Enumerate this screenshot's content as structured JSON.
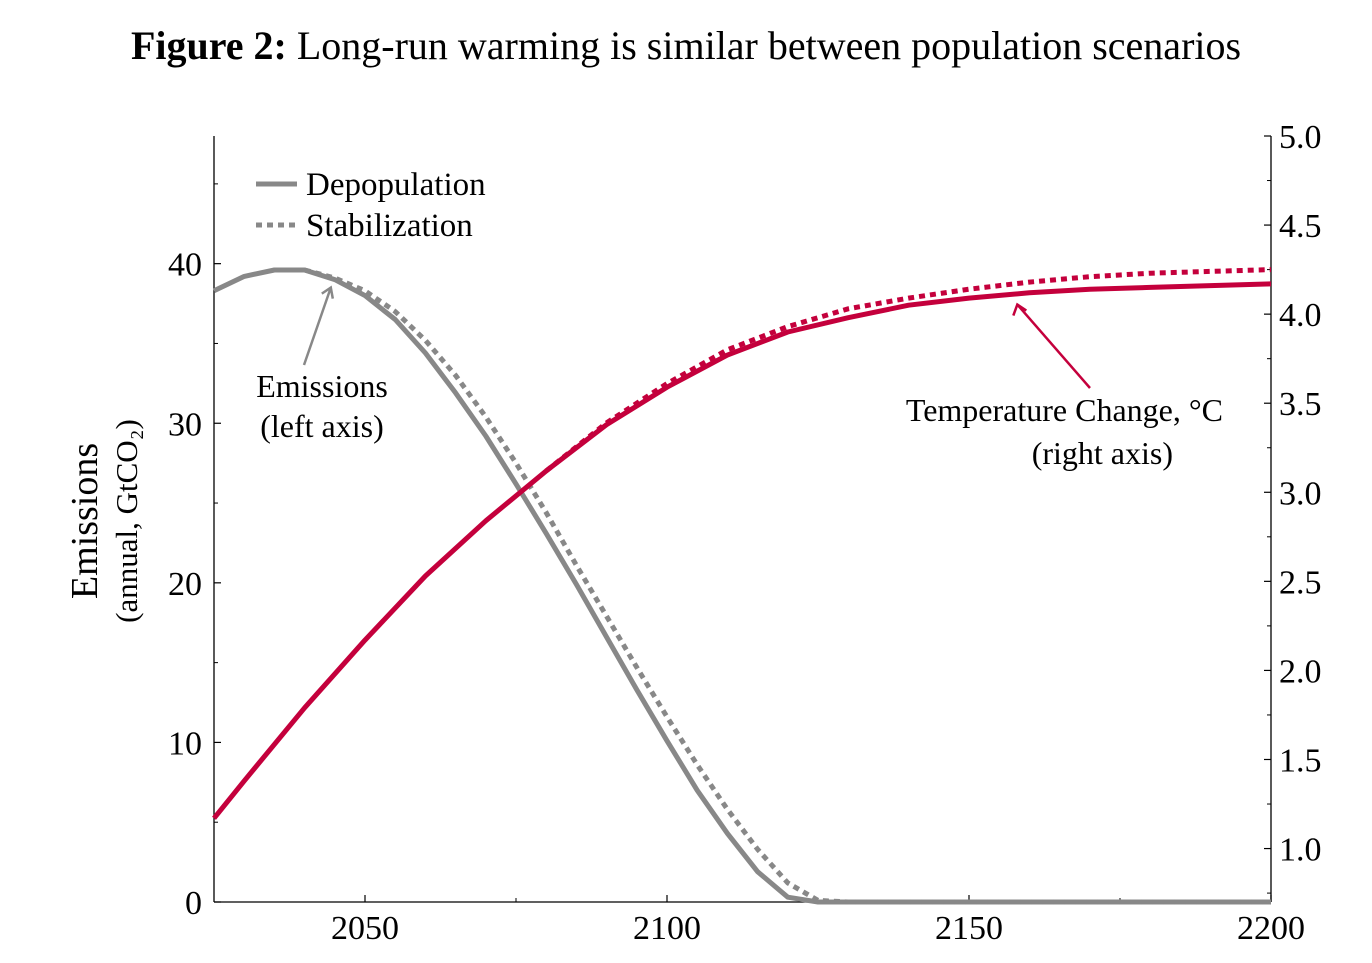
{
  "figure": {
    "label": "Figure 2:",
    "title": "Long-run warming is similar between population scenarios"
  },
  "chart_data": {
    "type": "line",
    "x": {
      "min": 2025,
      "max": 2200,
      "ticks": [
        2050,
        2100,
        2150,
        2200
      ],
      "tick_labels": [
        "2050",
        "2100",
        "2150",
        "2200"
      ],
      "minor_ticks": [
        2075,
        2125,
        2175
      ]
    },
    "y_left": {
      "min": 0,
      "max": 48,
      "ticks": [
        0,
        10,
        20,
        30,
        40
      ],
      "tick_labels": [
        "0",
        "10",
        "20",
        "30",
        "40"
      ],
      "minor_ticks": [
        5,
        15,
        25,
        35,
        45
      ],
      "label": "Emissions",
      "sublabel": "(annual, GtCO₂)"
    },
    "y_right": {
      "min": 0.7,
      "max": 5.0,
      "ticks": [
        1.0,
        1.5,
        2.0,
        2.5,
        3.0,
        3.5,
        4.0,
        4.5,
        5.0
      ],
      "tick_labels": [
        "1.0",
        "1.5",
        "2.0",
        "2.5",
        "3.0",
        "3.5",
        "4.0",
        "4.5",
        "5.0"
      ],
      "minor_ticks": [
        0.75,
        1.25,
        1.75,
        2.25,
        2.75,
        3.25,
        3.75,
        4.25,
        4.75
      ]
    },
    "legend": {
      "position": "top-left",
      "entries": [
        {
          "name": "Depopulation",
          "style": "solid"
        },
        {
          "name": "Stabilization",
          "style": "dotted"
        }
      ]
    },
    "colors": {
      "emissions": "#888888",
      "temperature": "#c4003c"
    },
    "series": [
      {
        "name": "Emissions, Depopulation",
        "axis": "left",
        "style": "solid",
        "x": [
          2025,
          2030,
          2035,
          2040,
          2045,
          2050,
          2055,
          2060,
          2065,
          2070,
          2075,
          2080,
          2085,
          2090,
          2095,
          2100,
          2105,
          2110,
          2115,
          2120,
          2125,
          2130,
          2140,
          2160,
          2180,
          2200
        ],
        "y": [
          38.3,
          39.2,
          39.6,
          39.6,
          39.0,
          38.0,
          36.5,
          34.4,
          31.9,
          29.2,
          26.2,
          23.1,
          19.9,
          16.6,
          13.3,
          10.1,
          7.0,
          4.3,
          1.9,
          0.3,
          0,
          0,
          0,
          0,
          0,
          0
        ]
      },
      {
        "name": "Emissions, Stabilization",
        "axis": "left",
        "style": "dotted",
        "x": [
          2040,
          2045,
          2050,
          2055,
          2060,
          2065,
          2070,
          2075,
          2080,
          2085,
          2090,
          2095,
          2100,
          2105,
          2110,
          2115,
          2120,
          2125,
          2130,
          2140,
          2160,
          2180,
          2200
        ],
        "y": [
          39.6,
          39.1,
          38.3,
          37.0,
          35.2,
          33.0,
          30.4,
          27.5,
          24.4,
          21.1,
          17.9,
          14.7,
          11.6,
          8.6,
          5.8,
          3.3,
          1.2,
          0.1,
          0,
          0,
          0,
          0,
          0
        ]
      },
      {
        "name": "Temperature, Depopulation",
        "axis": "right",
        "style": "solid",
        "x": [
          2025,
          2030,
          2040,
          2050,
          2060,
          2070,
          2080,
          2090,
          2100,
          2110,
          2120,
          2130,
          2140,
          2150,
          2160,
          2170,
          2180,
          2190,
          2200
        ],
        "y": [
          1.17,
          1.38,
          1.79,
          2.17,
          2.53,
          2.84,
          3.12,
          3.38,
          3.59,
          3.77,
          3.9,
          3.98,
          4.05,
          4.09,
          4.12,
          4.14,
          4.15,
          4.16,
          4.17
        ]
      },
      {
        "name": "Temperature, Stabilization",
        "axis": "right",
        "style": "dotted",
        "x": [
          2080,
          2090,
          2100,
          2110,
          2120,
          2130,
          2140,
          2150,
          2160,
          2170,
          2180,
          2190,
          2200
        ],
        "y": [
          3.12,
          3.39,
          3.61,
          3.8,
          3.93,
          4.03,
          4.09,
          4.14,
          4.18,
          4.21,
          4.23,
          4.24,
          4.25
        ]
      }
    ],
    "annotations": [
      {
        "lines": [
          "Emissions",
          "(left axis)"
        ],
        "arrow_to": {
          "x": 2045,
          "y": 39.0,
          "axis": "left"
        }
      },
      {
        "lines": [
          "Temperature Change, °C",
          "(right axis)"
        ],
        "arrow_to": {
          "x": 2158,
          "y": 4.11,
          "axis": "right"
        }
      }
    ]
  }
}
